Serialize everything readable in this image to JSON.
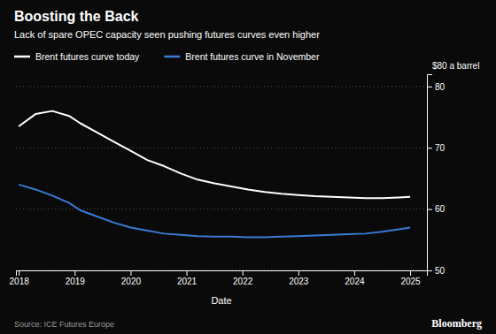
{
  "chart_data": {
    "type": "line",
    "title": "Boosting the Back",
    "subtitle": "Lack of spare OPEC capacity seen pushing futures curves even higher",
    "xlabel": "Date",
    "annotation": "$80 a barrel",
    "source": "Source: ICE Futures Europe",
    "credit": "Bloomberg",
    "x": [
      2018.0,
      2018.3,
      2018.6,
      2018.9,
      2019.1,
      2019.4,
      2019.7,
      2020.0,
      2020.3,
      2020.6,
      2020.9,
      2021.2,
      2021.5,
      2021.8,
      2022.1,
      2022.4,
      2022.7,
      2023.0,
      2023.3,
      2023.6,
      2023.9,
      2024.2,
      2024.5,
      2024.8,
      2025.0
    ],
    "series": [
      {
        "name": "Brent futures curve today",
        "color": "#ffffff",
        "values": [
          73.5,
          75.5,
          76.0,
          75.2,
          74.0,
          72.5,
          71.0,
          69.5,
          68.0,
          67.0,
          65.8,
          64.8,
          64.2,
          63.7,
          63.2,
          62.8,
          62.5,
          62.3,
          62.1,
          62.0,
          61.9,
          61.8,
          61.8,
          61.9,
          62.0
        ]
      },
      {
        "name": "Brent futures curve in November",
        "color": "#3a7bd5",
        "values": [
          64.0,
          63.2,
          62.2,
          61.0,
          59.8,
          58.8,
          57.8,
          57.0,
          56.5,
          56.0,
          55.8,
          55.6,
          55.5,
          55.5,
          55.4,
          55.4,
          55.5,
          55.6,
          55.7,
          55.8,
          55.9,
          56.0,
          56.3,
          56.7,
          57.0
        ]
      }
    ],
    "xlim": [
      2017.95,
      2025.3
    ],
    "ylim": [
      50,
      82
    ],
    "xticks": [
      2018,
      2019,
      2020,
      2021,
      2022,
      2023,
      2024,
      2025
    ],
    "yticks": [
      50,
      60,
      70,
      80
    ],
    "grid": true,
    "legend": "top"
  }
}
